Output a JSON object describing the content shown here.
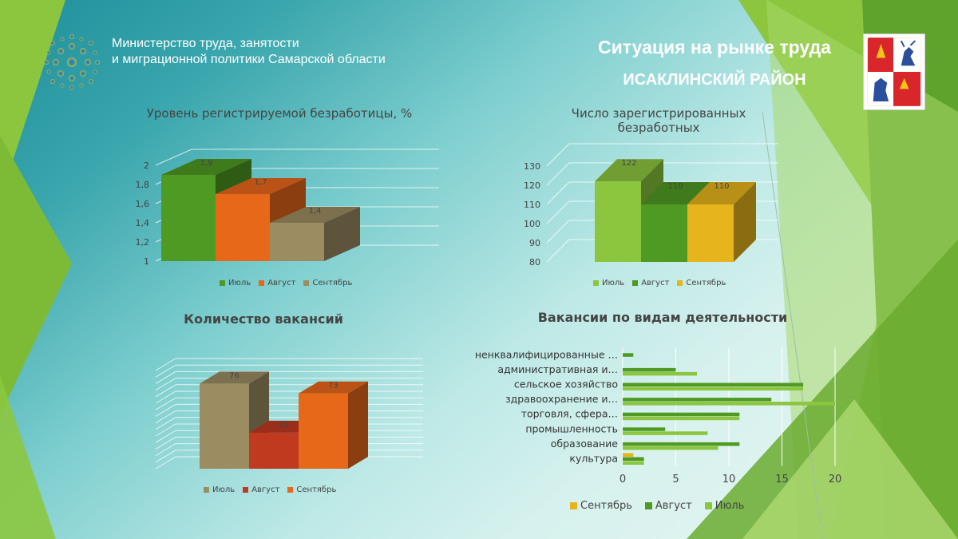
{
  "header": {
    "ministry_line1": "Министерство труда, занятости",
    "ministry_line2": "и миграционной политики  Самарской области",
    "title": "Ситуация на рынке труда",
    "district": "ИСАКЛИНСКИЙ РАЙОН"
  },
  "colors": {
    "green_dark": "#4f9a23",
    "green_light": "#8cc63f",
    "orange": "#e8681a",
    "khaki": "#9c8c62",
    "red": "#c03a20",
    "yellow": "#e6b41c"
  },
  "chart_data": [
    {
      "id": "unemployment-rate",
      "type": "bar",
      "title": "Уровень регистрируемой  безработицы, %",
      "categories": [
        "Июль",
        "Август",
        "Сентябрь"
      ],
      "values": [
        1.9,
        1.7,
        1.4
      ],
      "value_labels": [
        "1,9",
        "1,7",
        "1,4"
      ],
      "ylim": [
        1,
        2
      ],
      "yticks": [
        1,
        1.2,
        1.4,
        1.6,
        1.8,
        2
      ],
      "ytick_labels": [
        "1",
        "1,2",
        "1,4",
        "1,6",
        "1,8",
        "2"
      ],
      "colors": [
        "#4f9a23",
        "#e8681a",
        "#9c8c62"
      ],
      "legend_position": "bottom"
    },
    {
      "id": "registered-unemployed",
      "type": "bar",
      "title_line1": "Число зарегистрированных",
      "title_line2": "безработных",
      "categories": [
        "Июль",
        "Август",
        "Сентябрь"
      ],
      "values": [
        122,
        110,
        110
      ],
      "value_labels": [
        "122",
        "110",
        "110"
      ],
      "ylim": [
        80,
        130
      ],
      "yticks": [
        80,
        90,
        100,
        110,
        120,
        130
      ],
      "ytick_labels": [
        "80",
        "90",
        "100",
        "110",
        "120",
        "130"
      ],
      "colors": [
        "#8cc63f",
        "#4f9a23",
        "#e6b41c"
      ],
      "legend_position": "bottom"
    },
    {
      "id": "vacancies-count",
      "type": "bar",
      "title": "Количество вакансий",
      "categories": [
        "Июль",
        "Август",
        "Сентябрь"
      ],
      "values": [
        76,
        61,
        73
      ],
      "value_labels": [
        "76",
        "61",
        "73"
      ],
      "ylim": [
        50,
        80
      ],
      "colors": [
        "#9c8c62",
        "#c03a20",
        "#e8681a"
      ],
      "legend_position": "bottom"
    },
    {
      "id": "vacancies-by-sector",
      "type": "bar",
      "orientation": "horizontal",
      "title": "Вакансии по видам деятельности",
      "categories": [
        "ненквалифицированные …",
        "административная  и…",
        "сельское хозяйство",
        "здравоохранение и…",
        "торговля, сфера…",
        "промышленность",
        "образование",
        "культура"
      ],
      "series": [
        {
          "name": "Сентябрь",
          "values": [
            0,
            0,
            0,
            0,
            0,
            0,
            0,
            1
          ],
          "color": "#e6b41c"
        },
        {
          "name": "Август",
          "values": [
            1,
            5,
            17,
            14,
            11,
            4,
            11,
            2
          ],
          "color": "#4f9a23"
        },
        {
          "name": "Июль",
          "values": [
            0,
            7,
            17,
            20,
            11,
            8,
            9,
            2
          ],
          "color": "#8cc63f"
        }
      ],
      "xlim": [
        0,
        20
      ],
      "xticks": [
        0,
        5,
        10,
        15,
        20
      ],
      "legend_position": "bottom"
    }
  ]
}
